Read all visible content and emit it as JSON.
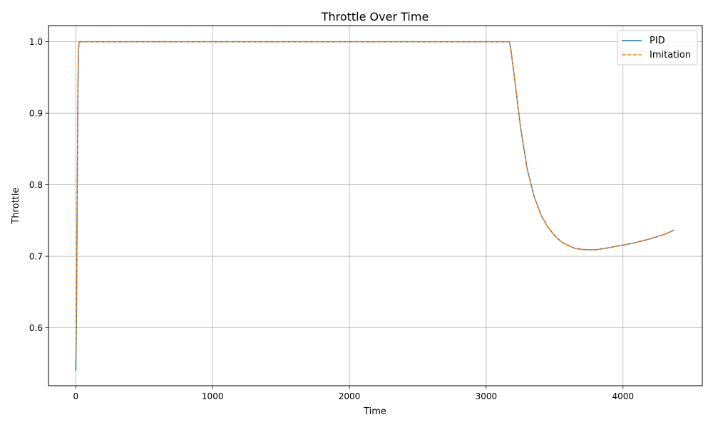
{
  "chart_data": {
    "type": "line",
    "title": "Throttle Over Time",
    "xlabel": "Time",
    "ylabel": "Throttle",
    "xlim": [
      -200,
      4580
    ],
    "ylim": [
      0.519,
      1.0225
    ],
    "xticks": [
      0,
      1000,
      2000,
      3000,
      4000
    ],
    "xtick_labels": [
      "0",
      "1000",
      "2000",
      "3000",
      "4000"
    ],
    "yticks": [
      0.6,
      0.7,
      0.8,
      0.9,
      1.0
    ],
    "ytick_labels": [
      "0.6",
      "0.7",
      "0.8",
      "0.9",
      "1.0"
    ],
    "grid": true,
    "legend_position": "top-right",
    "series": [
      {
        "name": "PID",
        "color": "#1f77b4",
        "style": "solid",
        "x": [
          0,
          5,
          10,
          15,
          20,
          25,
          3170,
          3180,
          3200,
          3250,
          3300,
          3350,
          3400,
          3450,
          3500,
          3550,
          3600,
          3650,
          3700,
          3750,
          3800,
          3850,
          3900,
          3950,
          4000,
          4050,
          4100,
          4150,
          4200,
          4250,
          4300,
          4350,
          4375
        ],
        "y": [
          0.54,
          0.62,
          0.78,
          0.93,
          0.99,
          1.0,
          1.0,
          0.99,
          0.96,
          0.882,
          0.822,
          0.784,
          0.758,
          0.741,
          0.729,
          0.72,
          0.715,
          0.711,
          0.7095,
          0.709,
          0.7092,
          0.7105,
          0.712,
          0.714,
          0.7155,
          0.7175,
          0.7195,
          0.722,
          0.7245,
          0.7275,
          0.7305,
          0.7345,
          0.737
        ]
      },
      {
        "name": "Imitation",
        "color": "#ff7f0e",
        "style": "dashed",
        "x": [
          0,
          5,
          10,
          15,
          20,
          25,
          3170,
          3180,
          3200,
          3250,
          3300,
          3350,
          3400,
          3450,
          3500,
          3550,
          3600,
          3650,
          3700,
          3750,
          3800,
          3850,
          3900,
          3950,
          4000,
          4050,
          4100,
          4150,
          4200,
          4250,
          4300,
          4350,
          4375
        ],
        "y": [
          0.555,
          0.64,
          0.79,
          0.935,
          0.99,
          1.0,
          1.0,
          0.99,
          0.96,
          0.882,
          0.822,
          0.784,
          0.758,
          0.741,
          0.729,
          0.72,
          0.715,
          0.711,
          0.7095,
          0.709,
          0.7092,
          0.7105,
          0.712,
          0.714,
          0.7155,
          0.7175,
          0.7195,
          0.722,
          0.7245,
          0.7275,
          0.7305,
          0.7345,
          0.737
        ]
      }
    ]
  }
}
